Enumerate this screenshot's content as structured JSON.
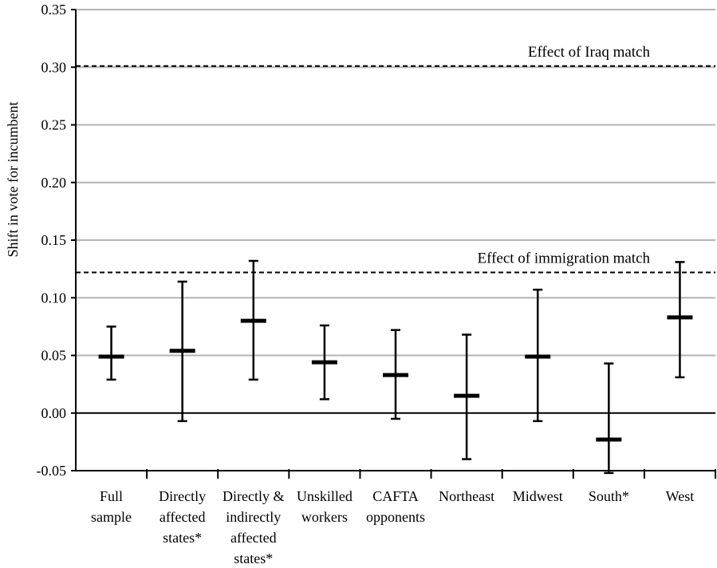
{
  "chart_data": {
    "type": "errorbar",
    "title": "",
    "xlabel": "",
    "ylabel": "Shift in vote for incumbent",
    "ylim": [
      -0.05,
      0.35
    ],
    "yticks": [
      "0.35",
      "0.30",
      "0.25",
      "0.20",
      "0.15",
      "0.10",
      "0.05",
      "0.00",
      "-0.05"
    ],
    "ytick_values": [
      0.35,
      0.3,
      0.25,
      0.2,
      0.15,
      0.1,
      0.05,
      0.0,
      -0.05
    ],
    "grid": true,
    "categories": [
      [
        "Full",
        "sample"
      ],
      [
        "Directly",
        "affected",
        "states*"
      ],
      [
        "Directly &",
        "indirectly",
        "affected",
        "states*"
      ],
      [
        "Unskilled",
        "workers"
      ],
      [
        "CAFTA",
        "opponents"
      ],
      [
        "Northeast"
      ],
      [
        "Midwest"
      ],
      [
        "South*"
      ],
      [
        "West"
      ]
    ],
    "estimates": [
      0.049,
      0.054,
      0.08,
      0.044,
      0.033,
      0.015,
      0.049,
      -0.023,
      0.083
    ],
    "lower": [
      0.029,
      -0.007,
      0.029,
      0.012,
      -0.005,
      -0.04,
      -0.007,
      -0.052,
      0.031
    ],
    "upper": [
      0.075,
      0.114,
      0.132,
      0.076,
      0.072,
      0.068,
      0.107,
      0.043,
      0.131
    ],
    "reference_lines": [
      {
        "label": "Effect of Iraq match",
        "value": 0.301
      },
      {
        "label": "Effect of immigration match",
        "value": 0.122
      }
    ],
    "colors": {
      "marks": "#000000",
      "grid": "#b3b3b3"
    }
  }
}
